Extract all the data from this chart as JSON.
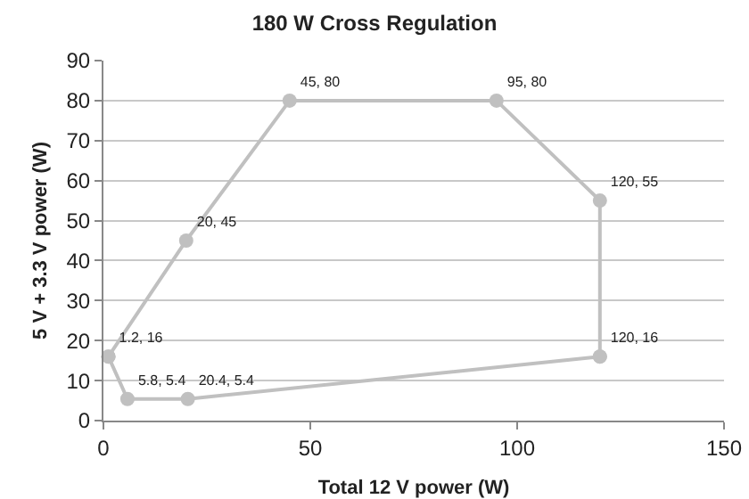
{
  "chart_data": {
    "type": "line",
    "title": "180 W Cross Regulation",
    "xlabel": "Total 12 V power (W)",
    "ylabel": "5 V + 3.3 V power (W)",
    "series": [
      {
        "color": "#c0c0c0",
        "x": [
          1.2,
          20,
          45,
          95,
          120,
          120
        ],
        "values": [
          16,
          45,
          80,
          80,
          55,
          16
        ],
        "value_labels": [
          "1.2, 16",
          "20, 45",
          "45, 80",
          "95, 80",
          "120, 55",
          "120, 16"
        ]
      },
      {
        "color": "#c0c0c0",
        "x": [
          1.2,
          5.8,
          20.4,
          120
        ],
        "values": [
          16,
          5.4,
          5.4,
          16
        ],
        "value_labels": [
          null,
          "5.8, 5.4",
          "20.4, 5.4",
          null
        ]
      }
    ],
    "xlim": [
      0,
      150
    ],
    "xticks": [
      0,
      50,
      100,
      150
    ],
    "ylim": [
      0,
      90
    ],
    "yticks": [
      0,
      10,
      20,
      30,
      40,
      50,
      60,
      70,
      80,
      90
    ],
    "grid": "y",
    "marker": "circle",
    "line_style": "solid"
  }
}
